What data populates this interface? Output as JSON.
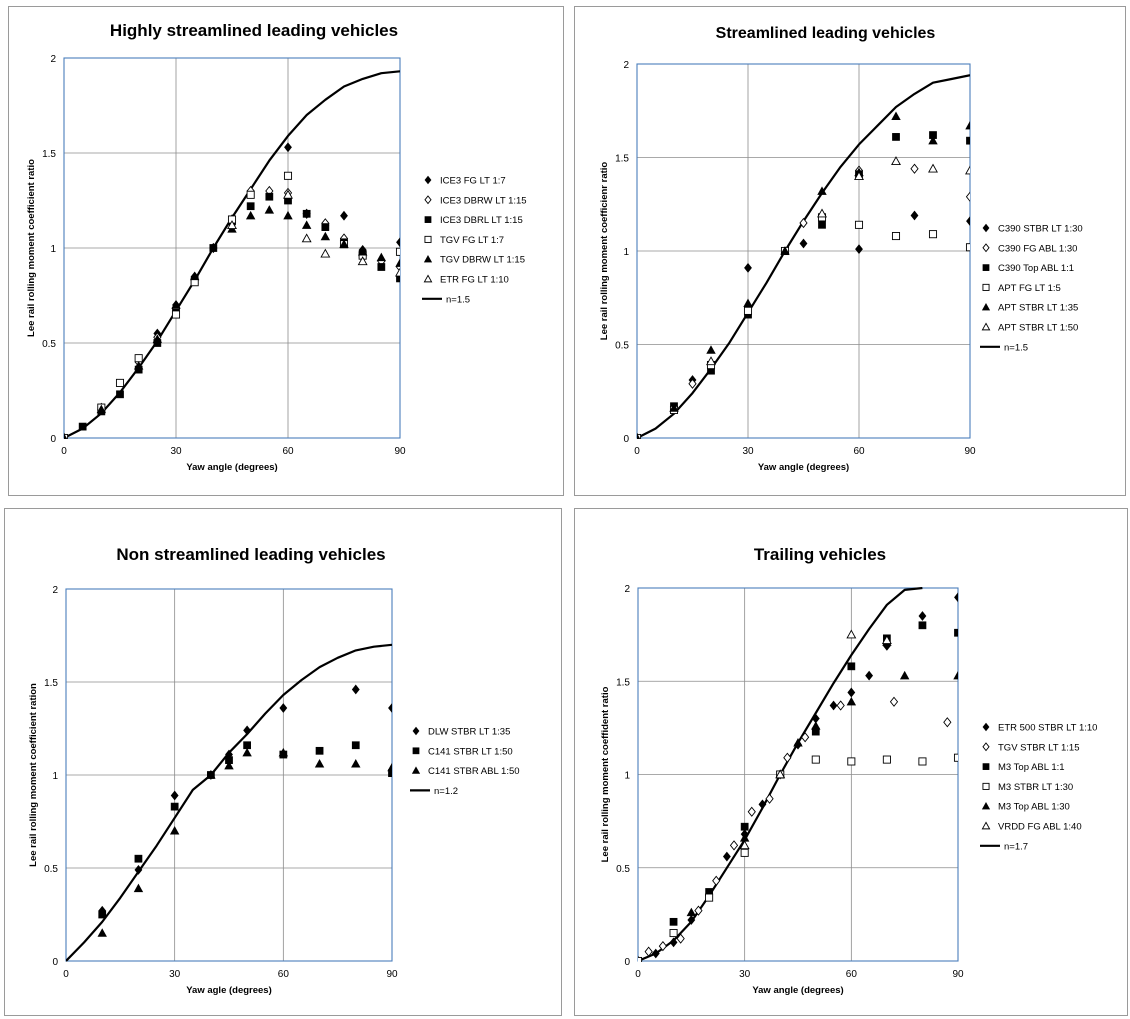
{
  "chart_data": [
    {
      "type": "scatter",
      "title": "Highly streamlined leading vehicles",
      "xlabel": "Yaw angle (degrees)",
      "ylabel": "Lee rail rolling moment coefficient ratio",
      "xlim": [
        0,
        90
      ],
      "ylim": [
        0,
        2
      ],
      "xticks": [
        "0",
        "30",
        "60",
        "90"
      ],
      "yticks": [
        "0",
        "0.5",
        "1",
        "1.5",
        "2"
      ],
      "grid": true,
      "legend": "right",
      "series": [
        {
          "name": "ICE3 FG LT 1:7",
          "marker": "diamond-filled",
          "x": [
            0,
            10,
            20,
            25,
            30,
            35,
            45,
            50,
            60,
            65,
            70,
            75,
            80,
            90
          ],
          "y": [
            0,
            0.16,
            0.4,
            0.55,
            0.7,
            0.85,
            1.15,
            1.3,
            1.53,
            1.18,
            1.12,
            1.17,
            0.99,
            1.03
          ]
        },
        {
          "name": "ICE3 DBRW LT 1:15",
          "marker": "diamond-open",
          "x": [
            0,
            10,
            20,
            25,
            30,
            35,
            40,
            45,
            50,
            55,
            60,
            65,
            70,
            75,
            80,
            85,
            90
          ],
          "y": [
            0,
            0.15,
            0.4,
            0.53,
            0.68,
            0.83,
            1.0,
            1.15,
            1.3,
            1.3,
            1.29,
            1.18,
            1.13,
            1.05,
            0.98,
            0.93,
            0.9
          ]
        },
        {
          "name": "ICE3 DBRL LT 1:15",
          "marker": "square-filled",
          "x": [
            0,
            5,
            10,
            15,
            20,
            25,
            30,
            35,
            40,
            45,
            50,
            55,
            60,
            65,
            70,
            75,
            80,
            85,
            90
          ],
          "y": [
            0,
            0.06,
            0.14,
            0.23,
            0.36,
            0.5,
            0.66,
            0.83,
            1.0,
            1.14,
            1.22,
            1.27,
            1.25,
            1.18,
            1.11,
            1.03,
            0.97,
            0.9,
            0.84
          ]
        },
        {
          "name": "TGV FG LT 1:7",
          "marker": "square-open",
          "x": [
            0,
            10,
            15,
            20,
            30,
            35,
            45,
            50,
            60,
            75,
            80,
            90
          ],
          "y": [
            0,
            0.16,
            0.29,
            0.42,
            0.65,
            0.82,
            1.15,
            1.28,
            1.38,
            1.02,
            0.96,
            0.98
          ]
        },
        {
          "name": "TGV DBRW LT 1:15",
          "marker": "triangle-filled",
          "x": [
            0,
            10,
            20,
            25,
            30,
            35,
            45,
            50,
            55,
            60,
            65,
            70,
            75,
            80,
            85,
            90
          ],
          "y": [
            0,
            0.15,
            0.38,
            0.52,
            0.7,
            0.85,
            1.1,
            1.17,
            1.2,
            1.17,
            1.12,
            1.06,
            1.02,
            0.98,
            0.95,
            0.92
          ]
        },
        {
          "name": "ETR FG LT 1:10",
          "marker": "triangle-open",
          "x": [
            45,
            60,
            65,
            70,
            80,
            90
          ],
          "y": [
            1.12,
            1.28,
            1.05,
            0.97,
            0.93,
            0.87
          ]
        },
        {
          "name": "n=1.5",
          "marker": "line",
          "x": [
            0,
            5,
            10,
            15,
            20,
            25,
            30,
            35,
            40,
            45,
            50,
            55,
            60,
            65,
            70,
            75,
            80,
            85,
            90
          ],
          "y": [
            0,
            0.05,
            0.13,
            0.24,
            0.37,
            0.51,
            0.67,
            0.83,
            1.0,
            1.16,
            1.31,
            1.46,
            1.59,
            1.7,
            1.78,
            1.85,
            1.89,
            1.92,
            1.93
          ]
        }
      ]
    },
    {
      "type": "scatter",
      "title": "Streamlined leading vehicles",
      "xlabel": "Yaw angle (degrees)",
      "ylabel": "Lee rail rolling moment coefficienr ratio",
      "xlim": [
        0,
        90
      ],
      "ylim": [
        0,
        2
      ],
      "xticks": [
        "0",
        "30",
        "60",
        "90"
      ],
      "yticks": [
        "0",
        "0.5",
        "1",
        "1.5",
        "2"
      ],
      "grid": true,
      "legend": "right",
      "series": [
        {
          "name": "C390 STBR LT 1:30",
          "marker": "diamond-filled",
          "x": [
            0,
            15,
            30,
            45,
            60,
            75,
            90
          ],
          "y": [
            0,
            0.31,
            0.91,
            1.04,
            1.01,
            1.19,
            1.16
          ]
        },
        {
          "name": "C390 FG ABL 1:30",
          "marker": "diamond-open",
          "x": [
            0,
            15,
            45,
            60,
            75,
            90
          ],
          "y": [
            0,
            0.29,
            1.15,
            1.43,
            1.44,
            1.29
          ]
        },
        {
          "name": "C390 Top ABL 1:1",
          "marker": "square-filled",
          "x": [
            0,
            10,
            20,
            30,
            40,
            50,
            60,
            70,
            80,
            90
          ],
          "y": [
            0,
            0.17,
            0.36,
            0.66,
            1.0,
            1.14,
            1.41,
            1.61,
            1.62,
            1.59
          ]
        },
        {
          "name": "APT FG LT 1:5",
          "marker": "square-open",
          "x": [
            0,
            10,
            20,
            30,
            40,
            50,
            60,
            70,
            80,
            90
          ],
          "y": [
            0,
            0.15,
            0.39,
            0.68,
            1.0,
            1.18,
            1.14,
            1.08,
            1.09,
            1.02
          ]
        },
        {
          "name": "APT STBR LT 1:35",
          "marker": "triangle-filled",
          "x": [
            0,
            10,
            20,
            30,
            40,
            50,
            60,
            70,
            80,
            90
          ],
          "y": [
            0,
            0.16,
            0.47,
            0.72,
            1.0,
            1.32,
            1.42,
            1.72,
            1.59,
            1.67
          ]
        },
        {
          "name": "APT STBR LT 1:50",
          "marker": "triangle-open",
          "x": [
            20,
            50,
            60,
            70,
            80,
            90
          ],
          "y": [
            0.41,
            1.2,
            1.4,
            1.48,
            1.44,
            1.43
          ]
        },
        {
          "name": "n=1.5",
          "marker": "line",
          "x": [
            0,
            5,
            10,
            15,
            20,
            25,
            30,
            35,
            40,
            45,
            50,
            55,
            60,
            65,
            70,
            75,
            80,
            85,
            90
          ],
          "y": [
            0,
            0.05,
            0.13,
            0.24,
            0.37,
            0.51,
            0.67,
            0.83,
            1.0,
            1.16,
            1.31,
            1.45,
            1.57,
            1.67,
            1.77,
            1.84,
            1.9,
            1.92,
            1.94
          ]
        }
      ]
    },
    {
      "type": "scatter",
      "title": "Non streamlined leading vehicles",
      "xlabel": "Yaw agle (degrees)",
      "ylabel": "Lee rail rolling moment coefficient ration",
      "xlim": [
        0,
        90
      ],
      "ylim": [
        0,
        2
      ],
      "xticks": [
        "0",
        "30",
        "60",
        "90"
      ],
      "yticks": [
        "0",
        "0.5",
        "1",
        "1.5",
        "2"
      ],
      "grid": true,
      "legend": "right",
      "series": [
        {
          "name": "DLW STBR LT 1:35",
          "marker": "diamond-filled",
          "x": [
            10,
            20,
            30,
            40,
            45,
            50,
            60,
            80,
            90
          ],
          "y": [
            0.27,
            0.49,
            0.89,
            1.0,
            1.11,
            1.24,
            1.36,
            1.46,
            1.36
          ]
        },
        {
          "name": "C141 STBR LT 1:50",
          "marker": "square-filled",
          "x": [
            10,
            20,
            30,
            40,
            45,
            50,
            60,
            70,
            80,
            90
          ],
          "y": [
            0.25,
            0.55,
            0.83,
            1.0,
            1.08,
            1.16,
            1.11,
            1.13,
            1.16,
            1.01
          ]
        },
        {
          "name": "C141 STBR ABL 1:50",
          "marker": "triangle-filled",
          "x": [
            10,
            20,
            30,
            40,
            45,
            50,
            60,
            70,
            80,
            90
          ],
          "y": [
            0.15,
            0.39,
            0.7,
            1.0,
            1.05,
            1.12,
            1.12,
            1.06,
            1.06,
            1.04
          ]
        },
        {
          "name": "n=1.2",
          "marker": "line",
          "x": [
            0,
            5,
            10,
            15,
            20,
            25,
            30,
            35,
            40,
            45,
            50,
            55,
            60,
            65,
            70,
            75,
            80,
            85,
            90
          ],
          "y": [
            0,
            0.1,
            0.21,
            0.34,
            0.48,
            0.62,
            0.77,
            0.92,
            1.0,
            1.12,
            1.22,
            1.33,
            1.43,
            1.51,
            1.58,
            1.63,
            1.67,
            1.69,
            1.7
          ]
        }
      ]
    },
    {
      "type": "scatter",
      "title": "Trailing vehicles",
      "xlabel": "Yaw angle (degrees)",
      "ylabel": "Lee rail rolling moment coeffident ratio",
      "xlim": [
        0,
        90
      ],
      "ylim": [
        0,
        2
      ],
      "xticks": [
        "0",
        "30",
        "60",
        "90"
      ],
      "yticks": [
        "0",
        "0.5",
        "1",
        "1.5",
        "2"
      ],
      "grid": true,
      "legend": "right",
      "series": [
        {
          "name": "ETR 500 STBR LT 1:10",
          "marker": "diamond-filled",
          "x": [
            0,
            5,
            10,
            15,
            20,
            25,
            30,
            35,
            40,
            45,
            50,
            55,
            60,
            65,
            70,
            80,
            90
          ],
          "y": [
            0,
            0.04,
            0.1,
            0.22,
            0.35,
            0.56,
            0.68,
            0.84,
            1.0,
            1.16,
            1.3,
            1.37,
            1.44,
            1.53,
            1.69,
            1.85,
            1.95
          ]
        },
        {
          "name": "TGV STBR LT 1:15",
          "marker": "diamond-open",
          "x": [
            0,
            3,
            7,
            12,
            17,
            22,
            27,
            32,
            37,
            42,
            47,
            57,
            72,
            87
          ],
          "y": [
            0,
            0.05,
            0.08,
            0.12,
            0.27,
            0.43,
            0.62,
            0.8,
            0.87,
            1.09,
            1.2,
            1.37,
            1.39,
            1.28
          ]
        },
        {
          "name": "M3 Top ABL 1:1",
          "marker": "square-filled",
          "x": [
            0,
            10,
            20,
            30,
            40,
            50,
            60,
            70,
            80,
            90
          ],
          "y": [
            0,
            0.21,
            0.37,
            0.72,
            1.0,
            1.23,
            1.58,
            1.73,
            1.8,
            1.76
          ]
        },
        {
          "name": "M3 STBR LT 1:30",
          "marker": "square-open",
          "x": [
            0,
            10,
            20,
            30,
            40,
            50,
            60,
            70,
            80,
            90
          ],
          "y": [
            0,
            0.15,
            0.34,
            0.58,
            1.0,
            1.08,
            1.07,
            1.08,
            1.07,
            1.09
          ]
        },
        {
          "name": "M3 Top ABL 1:30",
          "marker": "triangle-filled",
          "x": [
            15,
            30,
            40,
            45,
            50,
            60,
            70,
            75,
            90
          ],
          "y": [
            0.26,
            0.66,
            1.0,
            1.17,
            1.26,
            1.39,
            1.71,
            1.53,
            1.53
          ]
        },
        {
          "name": "VRDD FG ABL 1:40",
          "marker": "triangle-open",
          "x": [
            30,
            40,
            60,
            70
          ],
          "y": [
            0.62,
            1.0,
            1.75,
            1.72
          ]
        },
        {
          "name": "n=1.7",
          "marker": "line",
          "x": [
            0,
            5,
            10,
            15,
            20,
            25,
            30,
            35,
            40,
            45,
            50,
            55,
            60,
            65,
            70,
            75,
            80
          ],
          "y": [
            0,
            0.04,
            0.11,
            0.21,
            0.35,
            0.5,
            0.65,
            0.82,
            1.0,
            1.17,
            1.33,
            1.49,
            1.64,
            1.78,
            1.91,
            1.99,
            2.0
          ]
        }
      ]
    }
  ]
}
